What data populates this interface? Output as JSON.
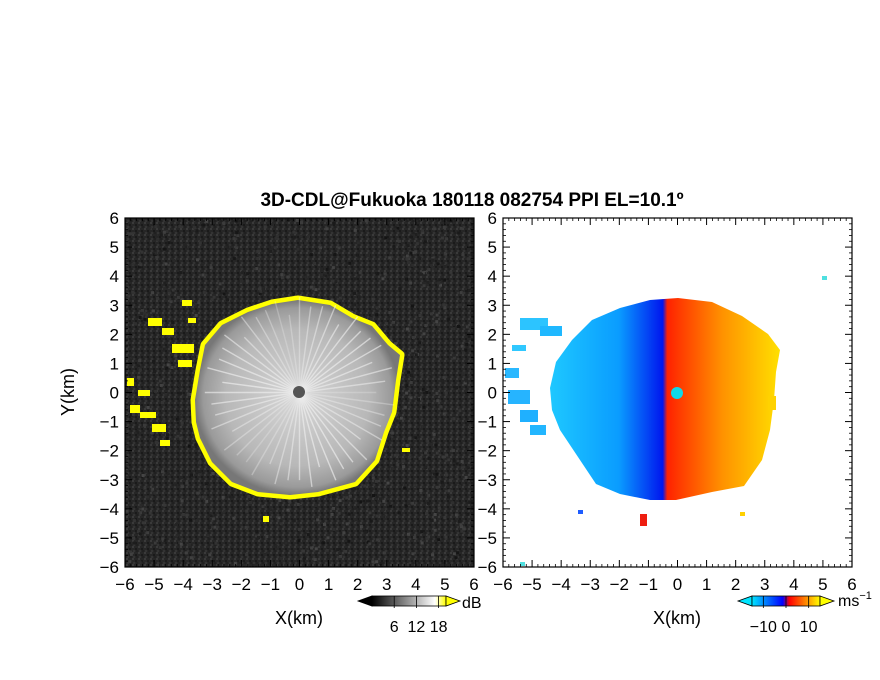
{
  "chart_data": {
    "title": "3D-CDL@Fukuoka 180118 082754 PPI EL=10.1º",
    "panels": [
      {
        "type": "heatmap",
        "quantity": "signal-to-noise ratio",
        "xlabel": "X(km)",
        "ylabel": "Y(km)",
        "xlim": [
          -6,
          6
        ],
        "ylim": [
          -6,
          6
        ],
        "xticks": [
          "−6",
          "−5",
          "−4",
          "−3",
          "−2",
          "−1",
          "0",
          "1",
          "2",
          "3",
          "4",
          "5",
          "6"
        ],
        "yticks": [
          "6",
          "5",
          "4",
          "3",
          "2",
          "1",
          "0",
          "−1",
          "−2",
          "−3",
          "−4",
          "−5",
          "−6"
        ],
        "echo_radius_km": 3.3,
        "colorbar": {
          "unit": "dB",
          "ticks": [
            "6",
            "12",
            "18"
          ],
          "range": [
            0,
            20
          ],
          "colors": [
            "#000000",
            "#ffffff",
            "#ffff00"
          ]
        }
      },
      {
        "type": "heatmap",
        "quantity": "radial velocity",
        "xlabel": "X(km)",
        "ylabel": "",
        "xlim": [
          -6,
          6
        ],
        "ylim": [
          -6,
          6
        ],
        "xticks": [
          "−6",
          "−5",
          "−4",
          "−3",
          "−2",
          "−1",
          "0",
          "1",
          "2",
          "3",
          "4",
          "5",
          "6"
        ],
        "yticks": [
          "6",
          "5",
          "4",
          "3",
          "2",
          "1",
          "0",
          "−1",
          "−2",
          "−3",
          "−4",
          "−5",
          "−6"
        ],
        "echo_radius_km": 3.3,
        "colorbar": {
          "unit": "ms",
          "unit_exponent": "−1",
          "ticks": [
            "−10",
            "0",
            "10"
          ],
          "range": [
            -15,
            15
          ],
          "colors": [
            "#00e5ff",
            "#0000ff",
            "#ff0000",
            "#ffff00"
          ]
        }
      }
    ]
  }
}
